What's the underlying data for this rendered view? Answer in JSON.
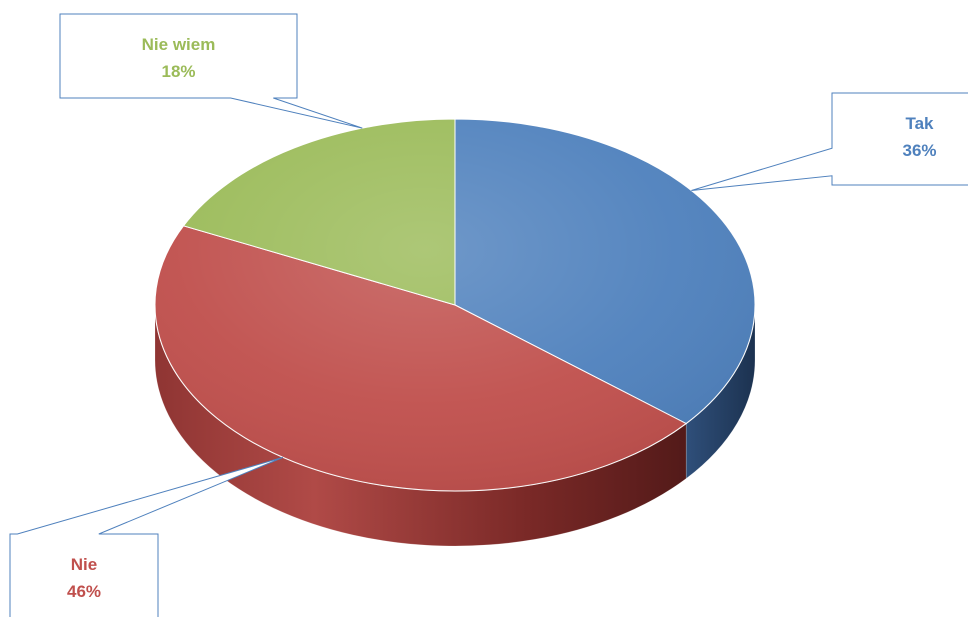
{
  "chart_data": {
    "type": "pie",
    "title": "",
    "categories": [
      "Tak",
      "Nie",
      "Nie wiem"
    ],
    "values": [
      36,
      46,
      18
    ],
    "unit": "%",
    "labels": [
      "36%",
      "46%",
      "18%"
    ],
    "colors": [
      "#4F81BD",
      "#C0504D",
      "#9BBB59"
    ],
    "style": "3d-exploded-ellipse",
    "legend": "none",
    "data_labels": "callouts"
  }
}
